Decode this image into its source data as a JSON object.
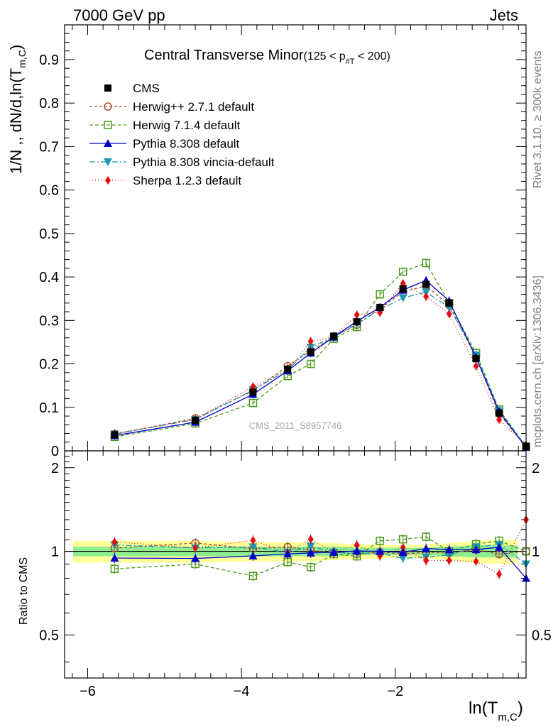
{
  "header": {
    "left": "7000 GeV pp",
    "right": "Jets"
  },
  "side": {
    "top": "Rivet 3.1.10, ≥ 300k events",
    "bottom": "mcplots.cern.ch [arXiv:1306.3436]"
  },
  "watermark": "CMS_2011_S8957746",
  "colors": {
    "cms": "#000000",
    "herwigpp": "#a0522d",
    "herwig7": "#4a9a1a",
    "pythia": "#0000cc",
    "vincia": "#1a9bb5",
    "sherpa": "#e01010",
    "band_inner": "#90ee90",
    "band_outer": "#ffff99"
  },
  "chart_data": {
    "type": "line",
    "title": "Central Transverse Minor",
    "title_range": "(125 < p",
    "title_sub": "#T",
    "title_tail": " < 200)",
    "xlabel": "ln(T",
    "xlabel_sub": "m,C",
    "ylabel": "1/N ,, dN/d,ln(T",
    "ylabel_sub": "m,C",
    "ratio_ylabel": "Ratio to CMS",
    "xlim": [
      -6.3,
      -0.3
    ],
    "ylim": [
      0,
      0.98
    ],
    "ratio_ylim": [
      0.35,
      2.3
    ],
    "log_ratio": true,
    "x": [
      -5.65,
      -4.6,
      -3.85,
      -3.4,
      -3.1,
      -2.8,
      -2.5,
      -2.2,
      -1.9,
      -1.6,
      -1.3,
      -0.95,
      -0.65,
      -0.3
    ],
    "x_ticks": [
      -6,
      -4,
      -2
    ],
    "x_tick_labels": [
      "−6",
      "−4",
      "−2"
    ],
    "y_ticks": [
      0,
      0.1,
      0.2,
      0.3,
      0.4,
      0.5,
      0.6,
      0.7,
      0.8,
      0.9
    ],
    "y_tick_labels": [
      "0",
      "0.1",
      "0.2",
      "0.3",
      "0.4",
      "0.5",
      "0.6",
      "0.7",
      "0.8",
      "0.9"
    ],
    "ratio_ticks": [
      0.5,
      1,
      2
    ],
    "ratio_tick_labels": [
      "0.5",
      "1",
      "2"
    ],
    "band_inner": [
      0.04,
      0.04,
      0.04,
      0.04,
      0.04,
      0.04,
      0.03,
      0.03,
      0.03,
      0.03,
      0.04,
      0.05,
      0.05,
      0.05
    ],
    "band_outer": [
      0.09,
      0.09,
      0.08,
      0.08,
      0.08,
      0.07,
      0.06,
      0.06,
      0.05,
      0.06,
      0.07,
      0.09,
      0.1,
      0.1
    ],
    "series": [
      {
        "name": "CMS",
        "key": "cms",
        "marker": "square-filled",
        "values": [
          0.037,
          0.07,
          0.135,
          0.188,
          0.228,
          0.264,
          0.297,
          0.33,
          0.373,
          0.383,
          0.34,
          0.212,
          0.087,
          0.01
        ]
      },
      {
        "name": "Herwig++ 2.7.1 default",
        "key": "herwigpp",
        "marker": "circle-open",
        "dash": "4,3",
        "values": [
          0.038,
          0.075,
          0.138,
          0.195,
          0.23,
          0.262,
          0.29,
          0.328,
          0.365,
          0.38,
          0.335,
          0.215,
          0.085,
          0.01
        ]
      },
      {
        "name": "Herwig 7.1.4 default",
        "key": "herwig7",
        "marker": "square-open",
        "dash": "5,3",
        "values": [
          0.032,
          0.063,
          0.11,
          0.172,
          0.2,
          0.258,
          0.285,
          0.36,
          0.412,
          0.432,
          0.34,
          0.225,
          0.095,
          0.01
        ]
      },
      {
        "name": "Pythia 8.308 default",
        "key": "pythia",
        "marker": "triangle-up",
        "dash": "",
        "values": [
          0.035,
          0.066,
          0.13,
          0.184,
          0.225,
          0.262,
          0.298,
          0.33,
          0.37,
          0.392,
          0.345,
          0.215,
          0.09,
          0.008
        ]
      },
      {
        "name": "Pythia 8.308 vincia-default",
        "key": "vincia",
        "marker": "triangle-down",
        "dash": "8,3,2,3",
        "values": [
          0.039,
          0.072,
          0.14,
          0.186,
          0.238,
          0.262,
          0.292,
          0.325,
          0.352,
          0.365,
          0.33,
          0.22,
          0.092,
          0.009
        ]
      },
      {
        "name": "Sherpa 1.2.3 default",
        "key": "sherpa",
        "marker": "diamond",
        "dash": "1,3",
        "values": [
          0.04,
          0.072,
          0.148,
          0.186,
          0.252,
          0.262,
          0.313,
          0.318,
          0.385,
          0.355,
          0.315,
          0.195,
          0.072,
          0.013
        ]
      }
    ]
  }
}
